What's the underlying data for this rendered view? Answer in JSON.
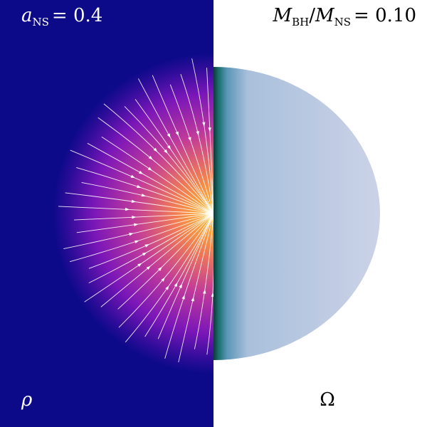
{
  "labels": {
    "top_left": {
      "symbol": "a",
      "subscript": "NS",
      "rest": "= 0.4"
    },
    "top_right": {
      "symbol1": "M",
      "subscript1": "BH",
      "slash": "/",
      "symbol2": "M",
      "subscript2": "NS",
      "rest": "= 0.10"
    },
    "bottom_left": "ρ",
    "bottom_right": "Ω"
  }
}
